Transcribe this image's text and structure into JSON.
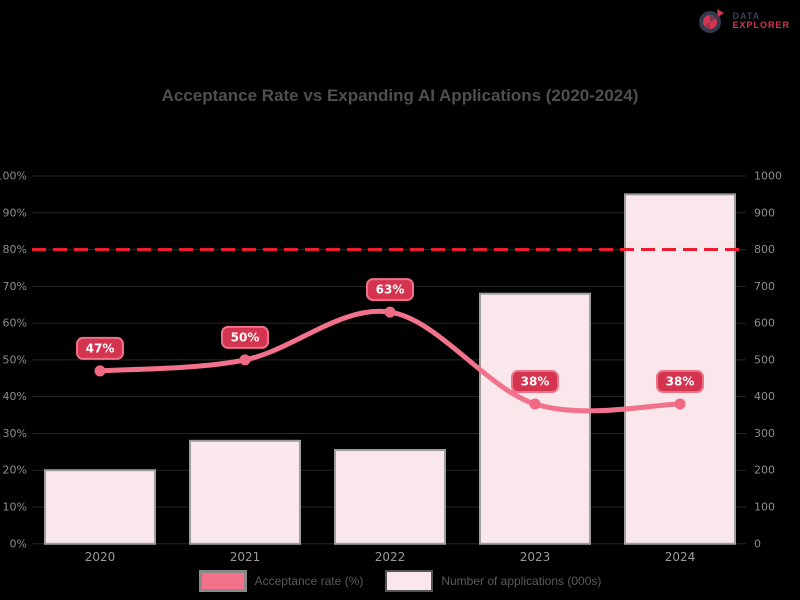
{
  "logo": {
    "line1": "DATA",
    "line2": "EXPLORER"
  },
  "title": "Acceptance Rate vs Expanding AI Applications (2020-2024)",
  "chart_data": {
    "type": "combo-bar-line",
    "categories": [
      "2020",
      "2021",
      "2022",
      "2023",
      "2024"
    ],
    "series": [
      {
        "name": "Acceptance rate (%)",
        "type": "line",
        "axis": "left",
        "values": [
          47,
          50,
          63,
          38,
          38
        ],
        "point_labels": [
          "47%",
          "50%",
          "63%",
          "38%",
          "38%"
        ],
        "color": "#f2718b"
      },
      {
        "name": "Number of applications (000s)",
        "type": "bar",
        "axis": "right",
        "values": [
          200,
          280,
          255,
          680,
          950
        ],
        "color": "#f9e7ec"
      }
    ],
    "target_line": {
      "value": 80,
      "axis": "left",
      "style": "dashed",
      "color": "#ed1c2e"
    },
    "left_axis": {
      "min": 0,
      "max": 100,
      "step": 10,
      "suffix": "%"
    },
    "right_axis": {
      "min": 0,
      "max": 1000,
      "step": 100,
      "suffix": ""
    },
    "grid": true,
    "legend_position": "bottom"
  },
  "colors": {
    "background": "#000000",
    "bar_fill": "#f9e7ec",
    "bar_border": "#9e9e9e",
    "line": "#f2718b",
    "point": "#ee6981",
    "badge_fill": "#d4344f",
    "badge_border": "#ee7287",
    "badge_text": "#ffffff",
    "target_line": "#ed1c2e",
    "grid_line": "#262626",
    "axis_text": "#8c8c8c",
    "category_text": "#9a9a9a",
    "title_text": "#4f4f4f",
    "legend_text": "#5a5a5a"
  }
}
